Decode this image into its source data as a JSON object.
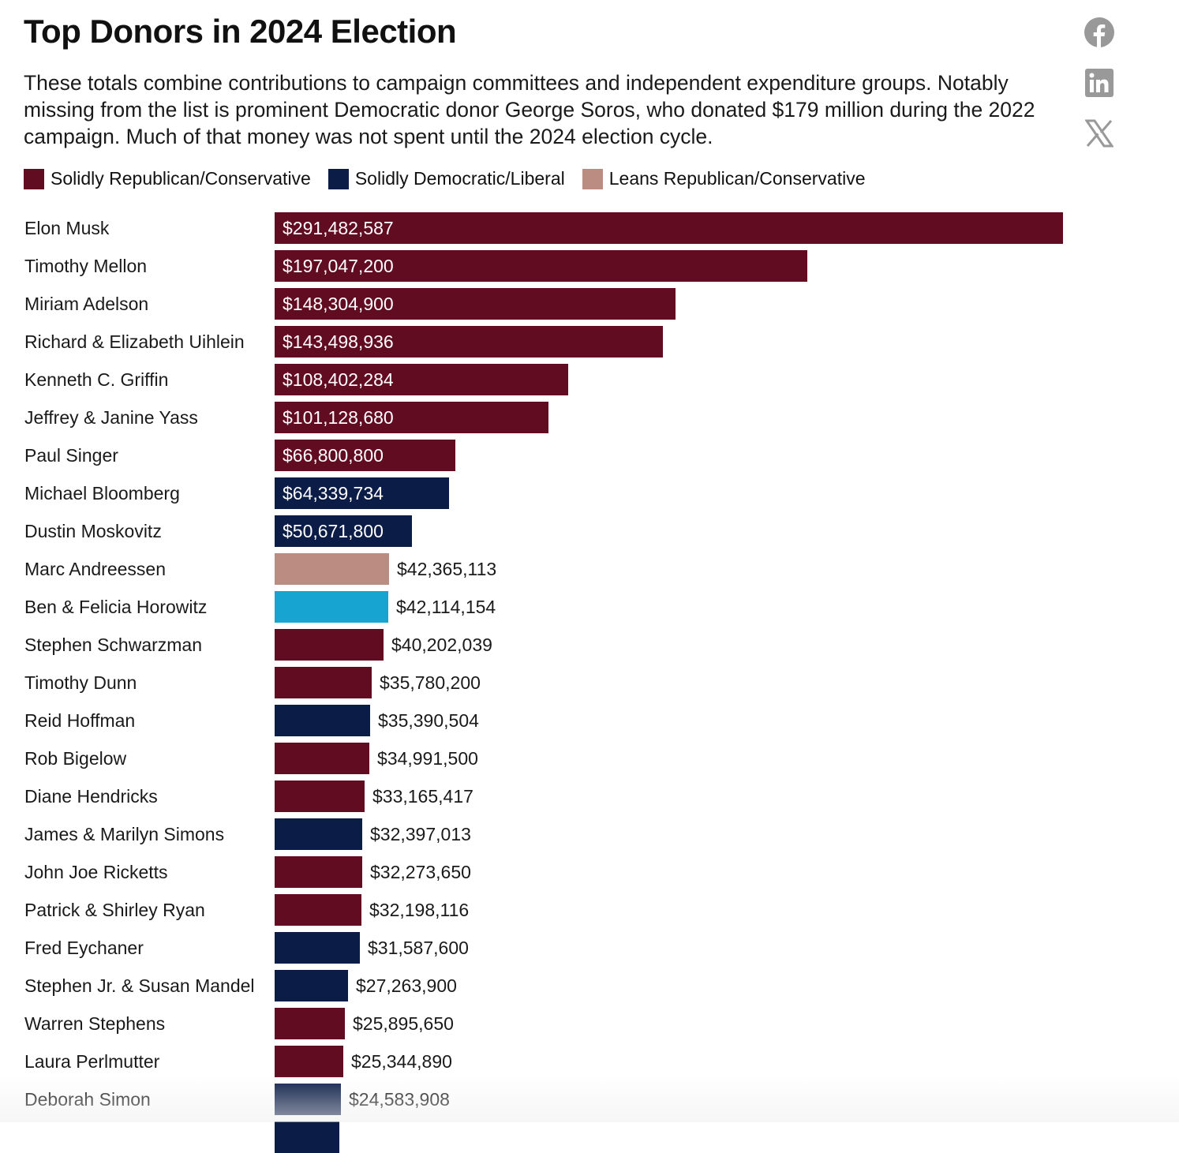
{
  "social": [
    {
      "name": "facebook-icon"
    },
    {
      "name": "linkedin-icon"
    },
    {
      "name": "x-icon"
    }
  ],
  "chart_data": {
    "type": "bar",
    "orientation": "horizontal",
    "title": "Top Donors in 2024 Election",
    "subtitle": "These totals combine contributions to campaign committees and independent expenditure groups. Notably missing from the list is prominent Democratic donor George Soros, who donated $179 million during the 2022 campaign. Much of that money was not spent until the 2024 election cycle.",
    "legend": [
      {
        "label": "Solidly Republican/Conservative",
        "color": "#620c22"
      },
      {
        "label": "Solidly Democratic/Liberal",
        "color": "#0b1c46"
      },
      {
        "label": "Leans Republican/Conservative",
        "color": "#bb8c82"
      }
    ],
    "category_colors": {
      "R": "#620c22",
      "D": "#0b1c46",
      "LR": "#bb8c82",
      "LD": "#18a4d0"
    },
    "xlim": [
      0,
      291482587
    ],
    "rows": [
      {
        "name": "Elon Musk",
        "value": 291482587,
        "label": "$291,482,587",
        "cat": "R"
      },
      {
        "name": "Timothy Mellon",
        "value": 197047200,
        "label": "$197,047,200",
        "cat": "R"
      },
      {
        "name": "Miriam Adelson",
        "value": 148304900,
        "label": "$148,304,900",
        "cat": "R"
      },
      {
        "name": "Richard & Elizabeth Uihlein",
        "value": 143498936,
        "label": "$143,498,936",
        "cat": "R"
      },
      {
        "name": "Kenneth C. Griffin",
        "value": 108402284,
        "label": "$108,402,284",
        "cat": "R"
      },
      {
        "name": "Jeffrey & Janine Yass",
        "value": 101128680,
        "label": "$101,128,680",
        "cat": "R"
      },
      {
        "name": "Paul Singer",
        "value": 66800800,
        "label": "$66,800,800",
        "cat": "R"
      },
      {
        "name": "Michael Bloomberg",
        "value": 64339734,
        "label": "$64,339,734",
        "cat": "D"
      },
      {
        "name": "Dustin Moskovitz",
        "value": 50671800,
        "label": "$50,671,800",
        "cat": "D"
      },
      {
        "name": "Marc Andreessen",
        "value": 42365113,
        "label": "$42,365,113",
        "cat": "LR"
      },
      {
        "name": "Ben & Felicia Horowitz",
        "value": 42114154,
        "label": "$42,114,154",
        "cat": "LD"
      },
      {
        "name": "Stephen Schwarzman",
        "value": 40202039,
        "label": "$40,202,039",
        "cat": "R"
      },
      {
        "name": "Timothy Dunn",
        "value": 35780200,
        "label": "$35,780,200",
        "cat": "R"
      },
      {
        "name": "Reid Hoffman",
        "value": 35390504,
        "label": "$35,390,504",
        "cat": "D"
      },
      {
        "name": "Rob Bigelow",
        "value": 34991500,
        "label": "$34,991,500",
        "cat": "R"
      },
      {
        "name": "Diane Hendricks",
        "value": 33165417,
        "label": "$33,165,417",
        "cat": "R"
      },
      {
        "name": "James & Marilyn Simons",
        "value": 32397013,
        "label": "$32,397,013",
        "cat": "D"
      },
      {
        "name": "John Joe Ricketts",
        "value": 32273650,
        "label": "$32,273,650",
        "cat": "R"
      },
      {
        "name": "Patrick & Shirley Ryan",
        "value": 32198116,
        "label": "$32,198,116",
        "cat": "R"
      },
      {
        "name": "Fred Eychaner",
        "value": 31587600,
        "label": "$31,587,600",
        "cat": "D"
      },
      {
        "name": "Stephen Jr. & Susan Mandel",
        "value": 27263900,
        "label": "$27,263,900",
        "cat": "D"
      },
      {
        "name": "Warren Stephens",
        "value": 25895650,
        "label": "$25,895,650",
        "cat": "R"
      },
      {
        "name": "Laura Perlmutter",
        "value": 25344890,
        "label": "$25,344,890",
        "cat": "R"
      },
      {
        "name": "Deborah Simon",
        "value": 24583908,
        "label": "$24,583,908",
        "cat": "D"
      }
    ]
  }
}
